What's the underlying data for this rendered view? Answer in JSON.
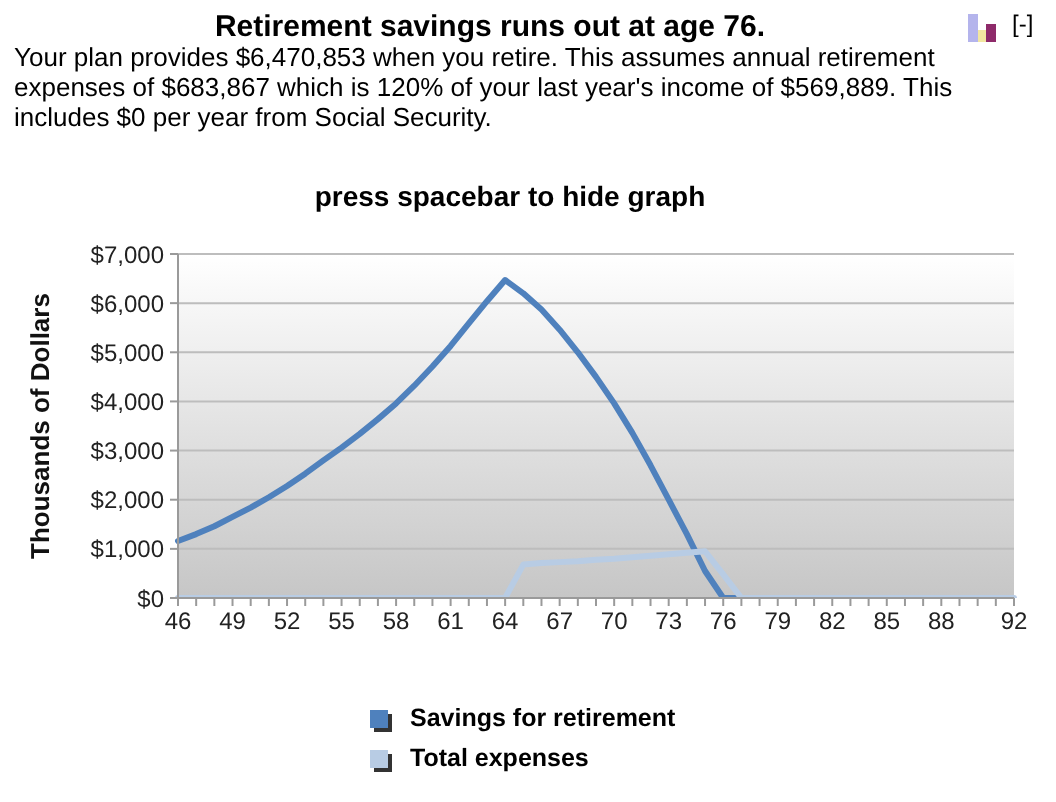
{
  "chart_data": {
    "type": "line",
    "title": "Retirement savings runs out at age 76.",
    "subtitle": "Your plan provides $6,470,853 when you retire. This assumes annual retirement expenses of $683,867 which is 120% of your last year's income of $569,889. This includes $0 per year from Social Security.",
    "ylabel": "Thousands of Dollars",
    "annotations": [
      "press spacebar to hide graph",
      "[-]"
    ],
    "categories": [
      "46",
      null,
      null,
      "49",
      null,
      null,
      "52",
      null,
      null,
      "55",
      null,
      null,
      "58",
      null,
      null,
      "61",
      null,
      null,
      "64",
      null,
      null,
      "67",
      null,
      null,
      "70",
      null,
      null,
      "73",
      null,
      null,
      "76",
      null,
      null,
      "79",
      null,
      null,
      "82",
      null,
      null,
      "85",
      null,
      null,
      "88",
      null,
      null,
      null,
      "92"
    ],
    "series": [
      {
        "name": "Savings for retirement",
        "color": "#4f81bd",
        "values": [
          1160,
          1300,
          1460,
          1650,
          1840,
          2050,
          2280,
          2530,
          2800,
          3060,
          3340,
          3640,
          3960,
          4320,
          4710,
          5130,
          5590,
          6040,
          6470,
          6200,
          5870,
          5460,
          5000,
          4500,
          3960,
          3360,
          2700,
          2000,
          1300,
          550,
          0,
          0,
          null,
          null,
          null,
          null,
          null,
          null,
          null,
          null,
          null,
          null,
          null,
          null,
          null,
          null,
          null
        ]
      },
      {
        "name": "Total expenses",
        "color": "#b8cce4",
        "values": [
          0,
          0,
          0,
          0,
          0,
          0,
          0,
          0,
          0,
          0,
          0,
          0,
          0,
          0,
          0,
          0,
          0,
          0,
          0,
          680,
          710,
          730,
          750,
          780,
          800,
          830,
          860,
          890,
          920,
          950,
          480,
          0,
          0,
          0,
          0,
          0,
          0,
          0,
          0,
          0,
          0,
          0,
          0,
          0,
          0,
          0,
          0
        ]
      }
    ],
    "ylim": [
      0,
      7000
    ],
    "yticks": [
      {
        "value": 0,
        "label": "$0"
      },
      {
        "value": 1000,
        "label": "$1,000"
      },
      {
        "value": 2000,
        "label": "$2,000"
      },
      {
        "value": 3000,
        "label": "$3,000"
      },
      {
        "value": 4000,
        "label": "$4,000"
      },
      {
        "value": 5000,
        "label": "$5,000"
      },
      {
        "value": 6000,
        "label": "$6,000"
      },
      {
        "value": 7000,
        "label": "$7,000"
      }
    ],
    "grid": "y",
    "legend": "bottom",
    "marker": "none",
    "line_style": "solid"
  }
}
